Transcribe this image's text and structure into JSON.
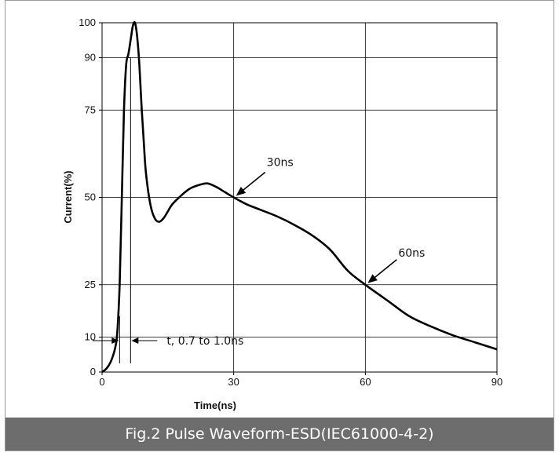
{
  "caption": "Fig.2 Pulse Waveform-ESD(IEC61000-4-2)",
  "chart_data": {
    "type": "line",
    "title": "",
    "xlabel": "Time(ns)",
    "ylabel": "Current(%)",
    "xlim": [
      0,
      90
    ],
    "ylim": [
      0,
      100
    ],
    "xticks": [
      0,
      30,
      60,
      90
    ],
    "yticks": [
      0,
      10,
      25,
      50,
      75,
      90,
      100
    ],
    "grid": true,
    "series": [
      {
        "x": [
          0,
          1,
          2,
          3,
          3.5,
          4,
          4.5,
          5,
          5.5,
          6,
          6.5,
          7,
          7.5,
          8,
          8.5,
          9,
          9.5,
          10,
          11,
          12,
          13,
          14,
          15,
          16,
          18,
          20,
          22,
          24,
          26,
          28,
          30,
          33,
          36,
          40,
          44,
          48,
          52,
          56,
          60,
          65,
          70,
          75,
          80,
          85,
          90
        ],
        "values": [
          0,
          1,
          3,
          7,
          12,
          25,
          50,
          75,
          88,
          91,
          95,
          99,
          100,
          96,
          88,
          76,
          66,
          57,
          48,
          44,
          43,
          44,
          46,
          48,
          50.5,
          52.5,
          53.5,
          54,
          53,
          51.5,
          50,
          48,
          46.5,
          44.5,
          42,
          39,
          35,
          29,
          25,
          20.5,
          16,
          13,
          10.5,
          8.5,
          6.5
        ]
      }
    ],
    "annotations": [
      {
        "text": "30ns",
        "x": 30,
        "y": 50
      },
      {
        "text": "60ns",
        "x": 60,
        "y": 25
      },
      {
        "text": "t, 0.7 to 1.0ns"
      }
    ],
    "rise_markers": [
      4.0,
      6.5
    ],
    "color": "#000000"
  }
}
